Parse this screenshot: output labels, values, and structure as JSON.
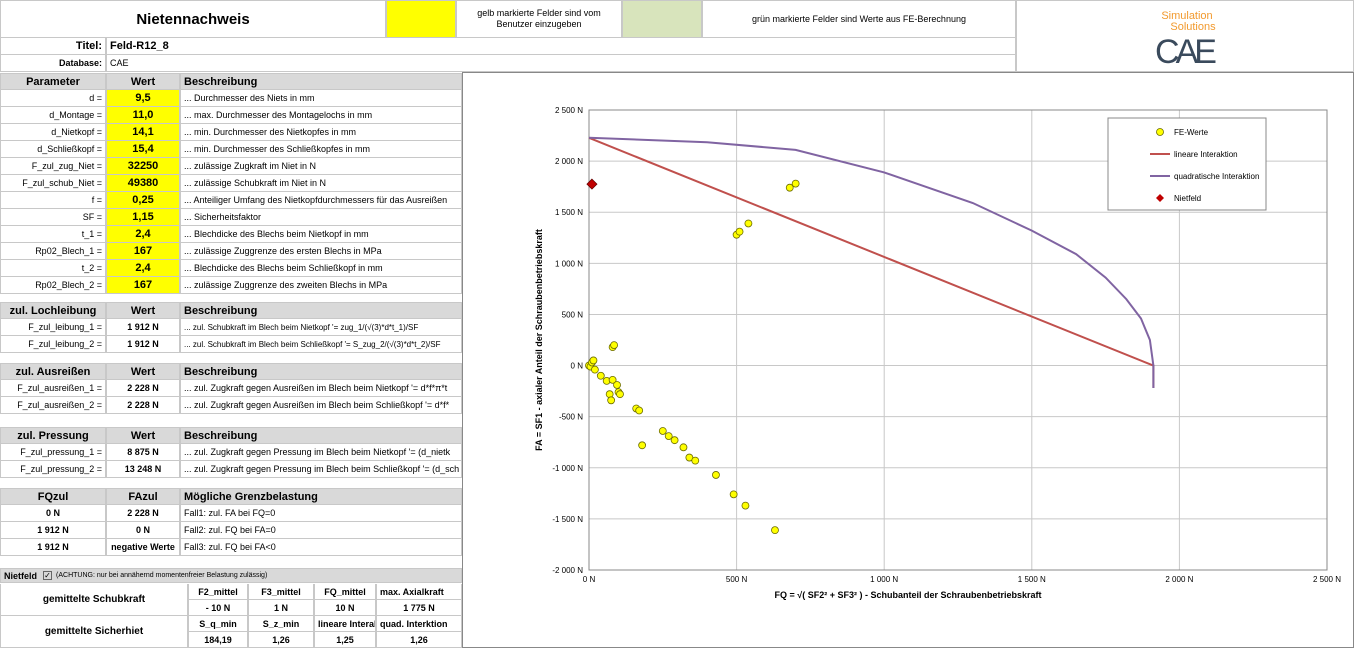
{
  "header": {
    "title": "Nietennachweis",
    "yellow_note": "gelb markierte Felder sind vom Benutzer einzugeben",
    "green_note": "grün markierte Felder sind Werte aus FE-Berechnung"
  },
  "logo": {
    "line1": "Simulation",
    "line2": "Solutions",
    "brand": "CAE"
  },
  "meta": {
    "title_label": "Titel:",
    "title_value": "Feld-R12_8",
    "db_label": "Database:",
    "db_value": "CAE"
  },
  "params": {
    "headers": [
      "Parameter",
      "Wert",
      "Beschreibung"
    ],
    "rows": [
      {
        "name": "d =",
        "value": "9,5",
        "desc": "... Durchmesser des Niets in mm"
      },
      {
        "name": "d_Montage =",
        "value": "11,0",
        "desc": "... max. Durchmesser des Montagelochs in mm"
      },
      {
        "name": "d_Nietkopf =",
        "value": "14,1",
        "desc": "... min. Durchmesser des Nietkopfes in mm"
      },
      {
        "name": "d_Schließkopf =",
        "value": "15,4",
        "desc": "... min. Durchmesser des Schließkopfes in mm"
      },
      {
        "name": "F_zul_zug_Niet =",
        "value": "32250",
        "desc": "... zulässige Zugkraft im Niet in N"
      },
      {
        "name": "F_zul_schub_Niet =",
        "value": "49380",
        "desc": "... zulässige Schubkraft im Niet in N"
      },
      {
        "name": "f =",
        "value": "0,25",
        "desc": "... Anteiliger Umfang des Nietkopfdurchmessers für das Ausreißen"
      },
      {
        "name": "SF =",
        "value": "1,15",
        "desc": "... Sicherheitsfaktor"
      },
      {
        "name": "t_1 =",
        "value": "2,4",
        "desc": "... Blechdicke des Blechs beim Nietkopf in mm"
      },
      {
        "name": "Rp02_Blech_1 =",
        "value": "167",
        "desc": "... zulässige Zuggrenze des ersten Blechs in MPa"
      },
      {
        "name": "t_2 =",
        "value": "2,4",
        "desc": "... Blechdicke des Blechs beim Schließkopf in mm"
      },
      {
        "name": "Rp02_Blech_2 =",
        "value": "167",
        "desc": "... zulässige Zuggrenze des zweiten Blechs in MPa"
      }
    ]
  },
  "lochleibung": {
    "headers": [
      "zul. Lochleibung",
      "Wert",
      "Beschreibung"
    ],
    "rows": [
      {
        "name": "F_zul_leibung_1 =",
        "value": "1 912 N",
        "desc": "... zul. Schubkraft im Blech beim Nietkopf '= zug_1/(√(3)*d*t_1)/SF"
      },
      {
        "name": "F_zul_leibung_2 =",
        "value": "1 912 N",
        "desc": "... zul. Schubkraft im Blech beim Schließkopf '= S_zug_2/(√(3)*d*t_2)/SF"
      }
    ]
  },
  "ausreissen": {
    "headers": [
      "zul. Ausreißen",
      "Wert",
      "Beschreibung"
    ],
    "rows": [
      {
        "name": "F_zul_ausreißen_1 =",
        "value": "2 228 N",
        "desc": "... zul. Zugkraft gegen Ausreißen im Blech beim Nietkopf '= d*f*π*t"
      },
      {
        "name": "F_zul_ausreißen_2 =",
        "value": "2 228 N",
        "desc": "... zul. Zugkraft gegen Ausreißen im Blech beim Schließkopf '= d*f*"
      }
    ]
  },
  "pressung": {
    "headers": [
      "zul. Pressung",
      "Wert",
      "Beschreibung"
    ],
    "rows": [
      {
        "name": "F_zul_pressung_1 =",
        "value": "8 875 N",
        "desc": "... zul. Zugkraft gegen Pressung im Blech beim Nietkopf '= (d_nietk"
      },
      {
        "name": "F_zul_pressung_2 =",
        "value": "13 248 N",
        "desc": "... zul. Zugkraft gegen Pressung im Blech beim Schließkopf '= (d_sch"
      }
    ]
  },
  "grenz": {
    "headers": [
      "FQzul",
      "FAzul",
      "Mögliche Grenzbelastung"
    ],
    "rows": [
      {
        "fq": "0 N",
        "fa": "2 228 N",
        "desc": "Fall1: zul. FA bei FQ=0"
      },
      {
        "fq": "1 912 N",
        "fa": "0 N",
        "desc": "Fall2: zul. FQ bei FA=0"
      },
      {
        "fq": "1 912 N",
        "fa": "negative Werte",
        "desc": "Fall3: zul. FQ bei FA<0"
      }
    ]
  },
  "nietfeld": {
    "label": "Nietfeld",
    "check": "✓",
    "note": "(ACHTUNG: nur bei annähernd momentenfreier Belastung zulässig)",
    "schub_label": "gemittelte Schubkraft",
    "schub_headers": [
      "F2_mittel",
      "F3_mittel",
      "FQ_mittel",
      "max. Axialkraft"
    ],
    "schub_values": [
      "- 10 N",
      "1 N",
      "10 N",
      "1 775 N"
    ],
    "sich_label": "gemittelte Sicherhiet",
    "sich_headers": [
      "S_q_min",
      "S_z_min",
      "lineare Interaktion",
      "quad. Interktion"
    ],
    "sich_values": [
      "184,19",
      "1,26",
      "1,25",
      "1,26"
    ]
  },
  "colors": {
    "yellow": "#ffff00",
    "green": "#d8e4bc",
    "gray": "#d9d9d9",
    "linear": "#c0504d",
    "quadratic": "#8064a2",
    "point_fill": "#ffff00",
    "nietfeld": "#c00000"
  },
  "chart_data": {
    "type": "scatter",
    "xlabel": "FQ = √( SF2² + SF3² )  -  Schubanteil der Schraubenbetriebskraft",
    "ylabel": "FA = SF1  - axialer Anteil der Schraubenbetriebskraft",
    "xlim": [
      0,
      2500
    ],
    "ylim": [
      -2000,
      2500
    ],
    "x_ticks": [
      "0 N",
      "500 N",
      "1 000 N",
      "1 500 N",
      "2 000 N",
      "2 500 N"
    ],
    "y_ticks": [
      "2 500 N",
      "2 000 N",
      "1 500 N",
      "1 000 N",
      "500 N",
      "0 N",
      "-500 N",
      "-1 000 N",
      "-1 500 N",
      "-2 000 N"
    ],
    "grid": true,
    "legend_position": "top-right",
    "series": [
      {
        "name": "FE-Werte",
        "points": [
          [
            0,
            0
          ],
          [
            5,
            -10
          ],
          [
            10,
            30
          ],
          [
            15,
            50
          ],
          [
            20,
            -40
          ],
          [
            40,
            -100
          ],
          [
            60,
            -150
          ],
          [
            70,
            -280
          ],
          [
            75,
            -340
          ],
          [
            80,
            -140
          ],
          [
            80,
            180
          ],
          [
            85,
            200
          ],
          [
            95,
            -190
          ],
          [
            100,
            -260
          ],
          [
            105,
            -280
          ],
          [
            160,
            -420
          ],
          [
            170,
            -440
          ],
          [
            180,
            -780
          ],
          [
            250,
            -640
          ],
          [
            270,
            -690
          ],
          [
            290,
            -730
          ],
          [
            320,
            -800
          ],
          [
            340,
            -900
          ],
          [
            360,
            -930
          ],
          [
            430,
            -1070
          ],
          [
            490,
            -1260
          ],
          [
            500,
            1280
          ],
          [
            510,
            1310
          ],
          [
            530,
            -1370
          ],
          [
            540,
            1390
          ],
          [
            630,
            -1610
          ],
          [
            680,
            1740
          ],
          [
            700,
            1780
          ]
        ]
      },
      {
        "name": "lineare Interaktion",
        "points": [
          [
            0,
            2228
          ],
          [
            1912,
            0
          ],
          [
            1912,
            -220
          ]
        ]
      },
      {
        "name": "quadratische Interaktion",
        "points": [
          [
            0,
            2228
          ],
          [
            400,
            2185
          ],
          [
            700,
            2110
          ],
          [
            1000,
            1890
          ],
          [
            1300,
            1590
          ],
          [
            1500,
            1320
          ],
          [
            1650,
            1090
          ],
          [
            1750,
            860
          ],
          [
            1820,
            650
          ],
          [
            1870,
            460
          ],
          [
            1900,
            250
          ],
          [
            1912,
            0
          ],
          [
            1912,
            -220
          ]
        ]
      },
      {
        "name": "Nietfeld",
        "points": [
          [
            10,
            1775
          ]
        ]
      }
    ]
  }
}
